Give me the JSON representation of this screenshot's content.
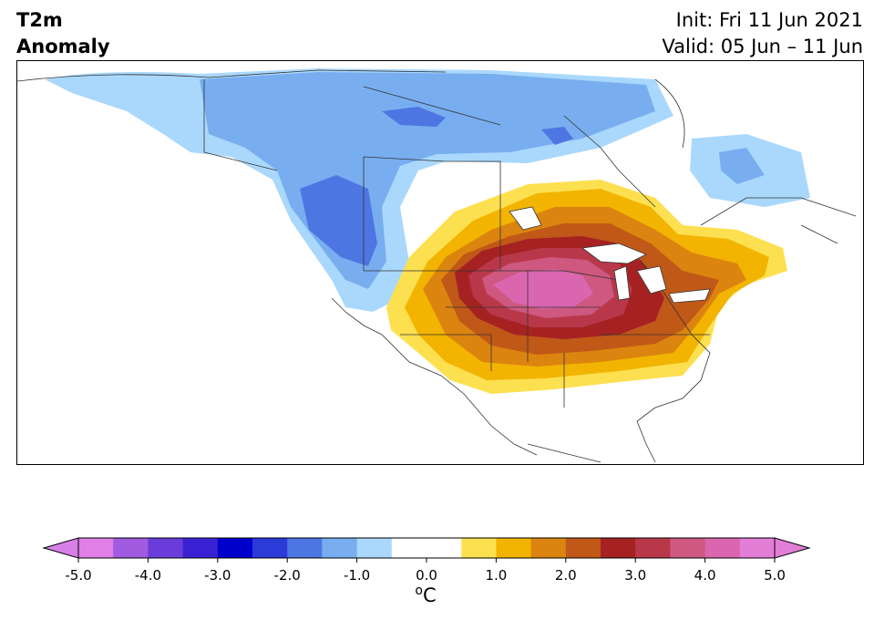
{
  "header": {
    "variable": "T2m",
    "product": "Anomaly",
    "init": "Init: Fri 11 Jun 2021",
    "valid": "Valid: 05 Jun – 11 Jun"
  },
  "colorbar": {
    "unit_super": "o",
    "unit_base": "C",
    "min": -5.0,
    "max": 5.0,
    "step": 0.5,
    "ticks": [
      "-5.0",
      "-4.0",
      "-3.0",
      "-2.0",
      "-1.0",
      "0.0",
      "1.0",
      "2.0",
      "3.0",
      "4.0",
      "5.0"
    ],
    "colors": [
      "#e07fe6",
      "#a05be0",
      "#6a3ddb",
      "#3a22d4",
      "#0000cc",
      "#2b3bd8",
      "#4d76e3",
      "#78aef0",
      "#aad8fc",
      "#ffffff",
      "#ffffff",
      "#fde050",
      "#f2b400",
      "#dc8410",
      "#c05818",
      "#a62222",
      "#b8384a",
      "#ce5880",
      "#da66b0",
      "#e27ed6"
    ],
    "extend_low_color": "#d77fe8",
    "extend_high_color": "#e27ed6"
  },
  "map": {
    "region": "North America",
    "warm_center_color": "#d964b0",
    "cold_max_color": "#4a72e2"
  }
}
